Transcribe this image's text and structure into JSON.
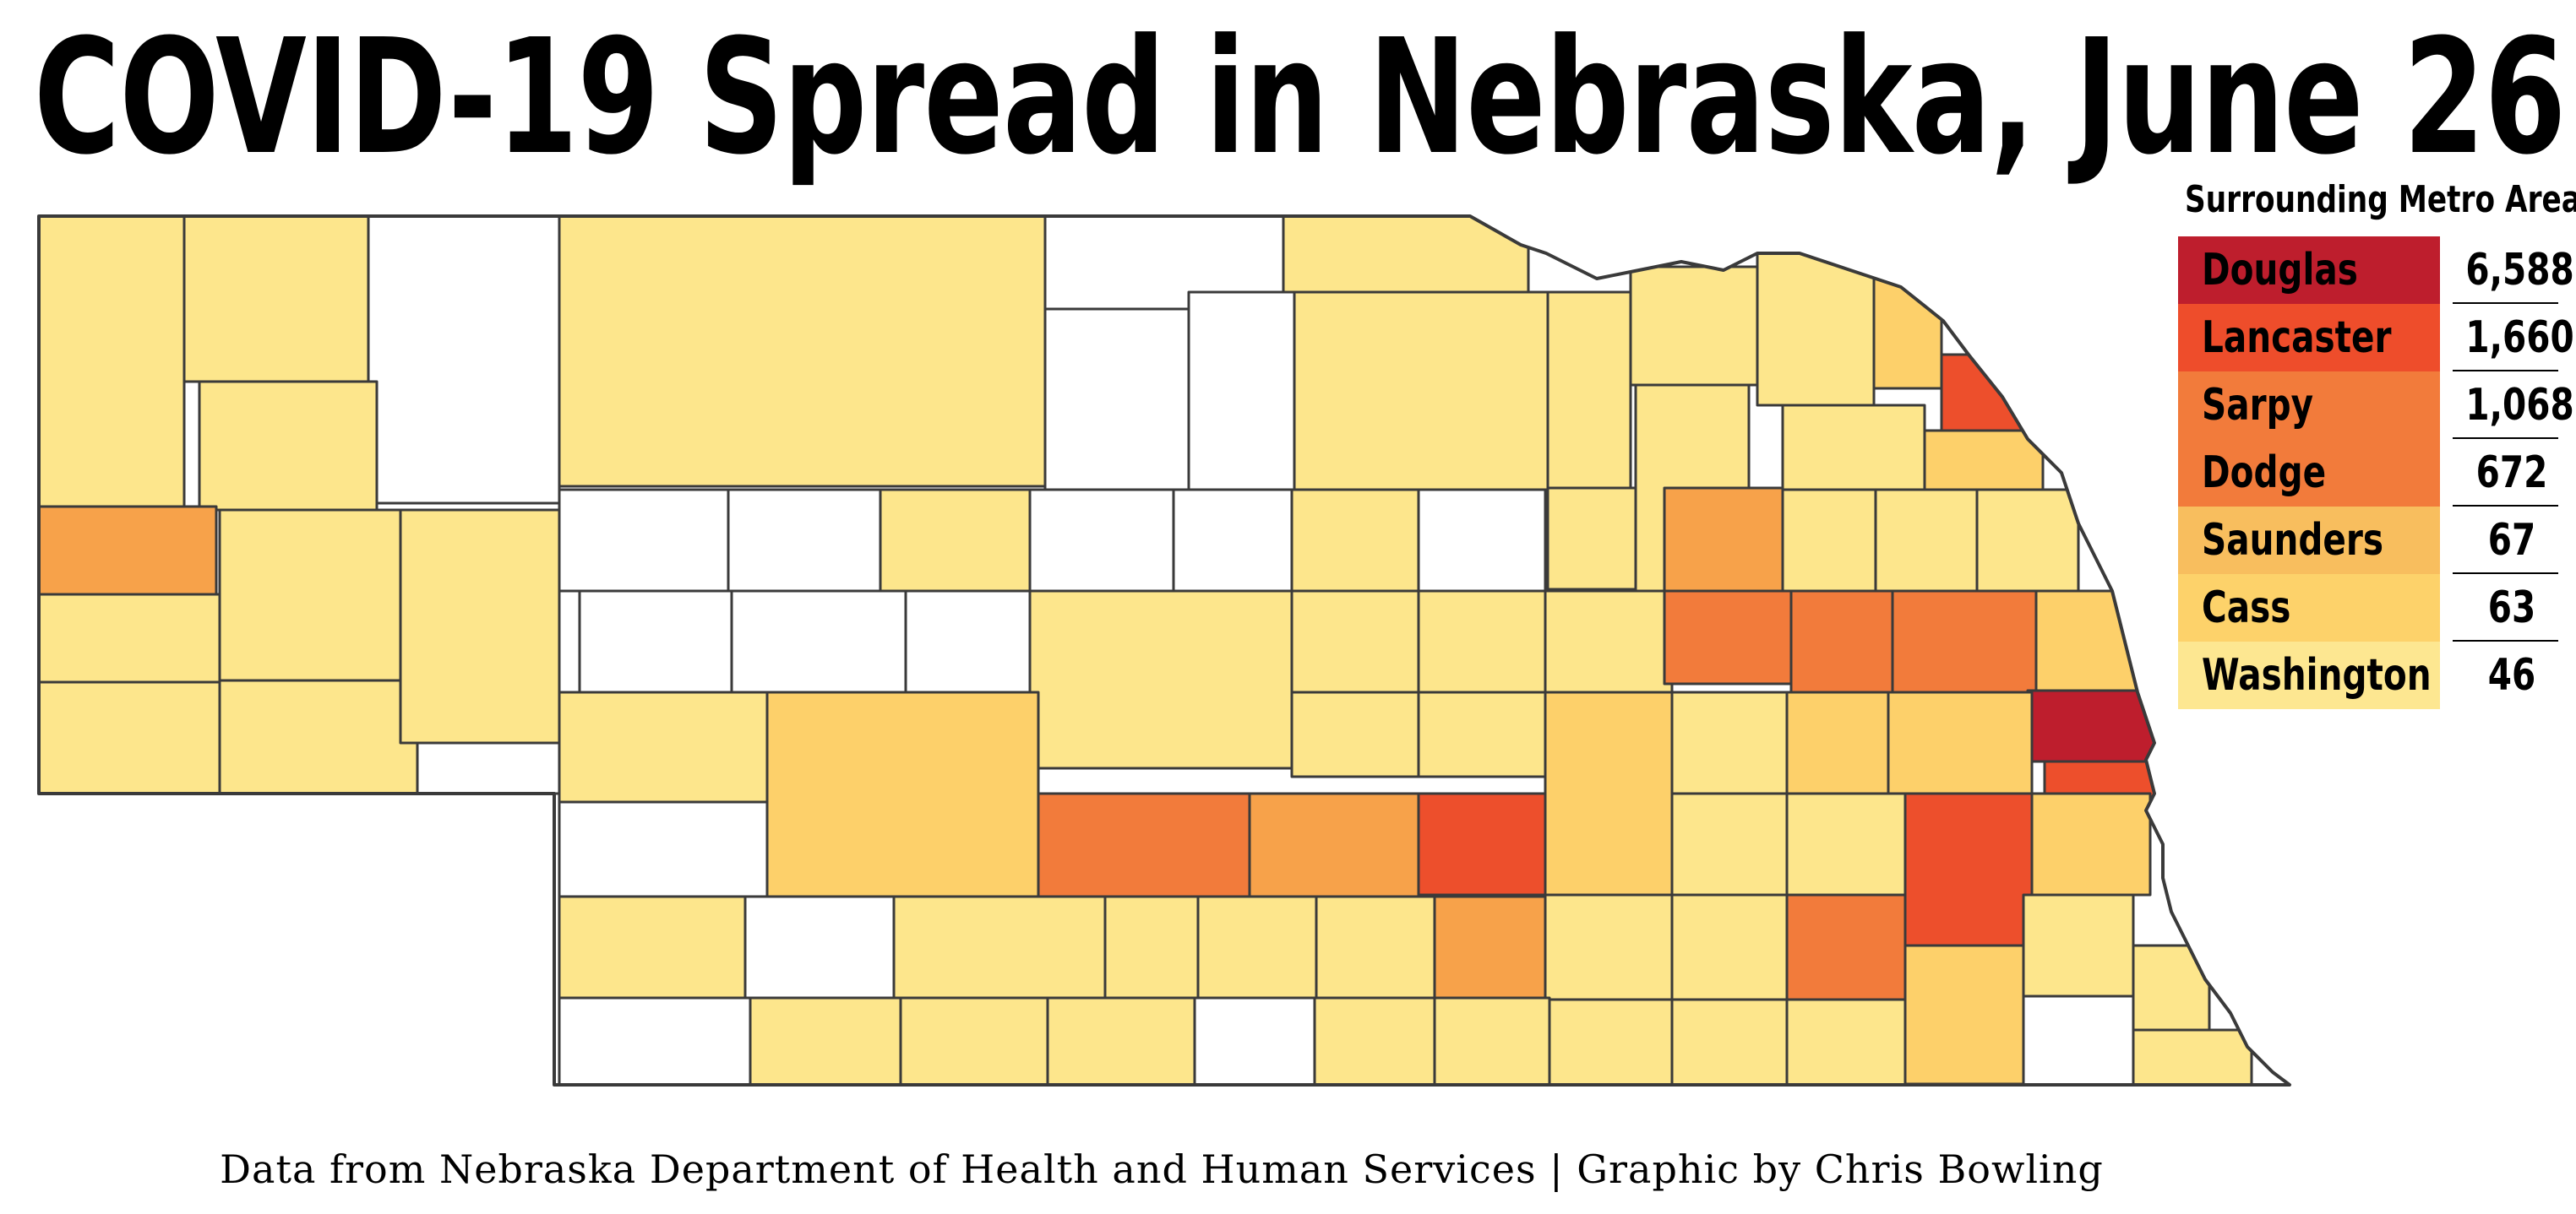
{
  "header": {
    "title": "COVID-19 Spread in Nebraska, June 26"
  },
  "legend": {
    "heading": "Surrounding Metro Area",
    "items": [
      {
        "name": "Douglas",
        "value": "6,588",
        "color": "#be1e2d"
      },
      {
        "name": "Lancaster",
        "value": "1,660",
        "color": "#ee4d2b"
      },
      {
        "name": "Sarpy",
        "value": "1,068",
        "color": "#f27b3b"
      },
      {
        "name": "Dodge",
        "value": "672",
        "color": "#f27b3b"
      },
      {
        "name": "Saunders",
        "value": "67",
        "color": "#f8be5e"
      },
      {
        "name": "Cass",
        "value": "63",
        "color": "#fdd26a"
      },
      {
        "name": "Washington",
        "value": "46",
        "color": "#fde791"
      }
    ]
  },
  "map": {
    "state": "Nebraska",
    "colors": {
      "none": "#ffffff",
      "low": "#fde68c",
      "mid_low": "#fdd06a",
      "mid": "#f7a24a",
      "mid_high": "#f27b3b",
      "high": "#ed4f2c",
      "highest": "#be1e2d"
    }
  },
  "footer": {
    "credit": "Data from Nebraska Department of Health and Human Services | Graphic by Chris Bowling"
  }
}
